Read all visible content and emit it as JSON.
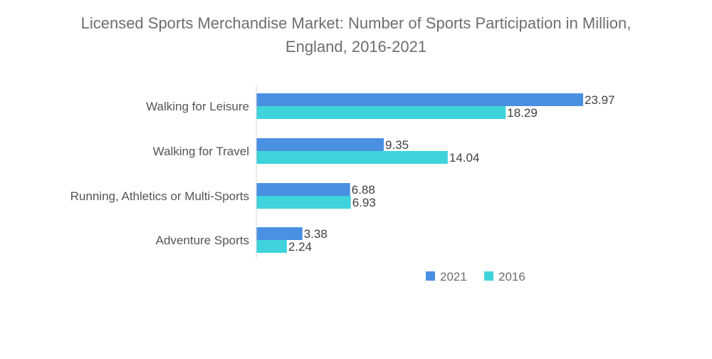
{
  "chart_data": {
    "type": "bar",
    "orientation": "horizontal",
    "title_line1": "Licensed Sports Merchandise Market: Number of Sports Participation in Million,",
    "title_line2": "England, 2016-2021",
    "categories": [
      "Walking for Leisure",
      "Walking for Travel",
      "Running, Athletics or Multi-Sports",
      "Adventure Sports"
    ],
    "series": [
      {
        "name": "2021",
        "color": "#4a90e2",
        "values": [
          23.97,
          9.35,
          6.88,
          3.38
        ]
      },
      {
        "name": "2016",
        "color": "#3fd3db",
        "values": [
          18.29,
          14.04,
          6.93,
          2.24
        ]
      }
    ],
    "data_labels": {
      "2021": [
        "23.97",
        "9.35",
        "6.88",
        "3.38"
      ],
      "2016": [
        "18.29",
        "14.04",
        "6.93",
        "2.24"
      ]
    },
    "xlim": [
      0,
      24
    ],
    "grid": false,
    "legend_position": "bottom-right"
  }
}
